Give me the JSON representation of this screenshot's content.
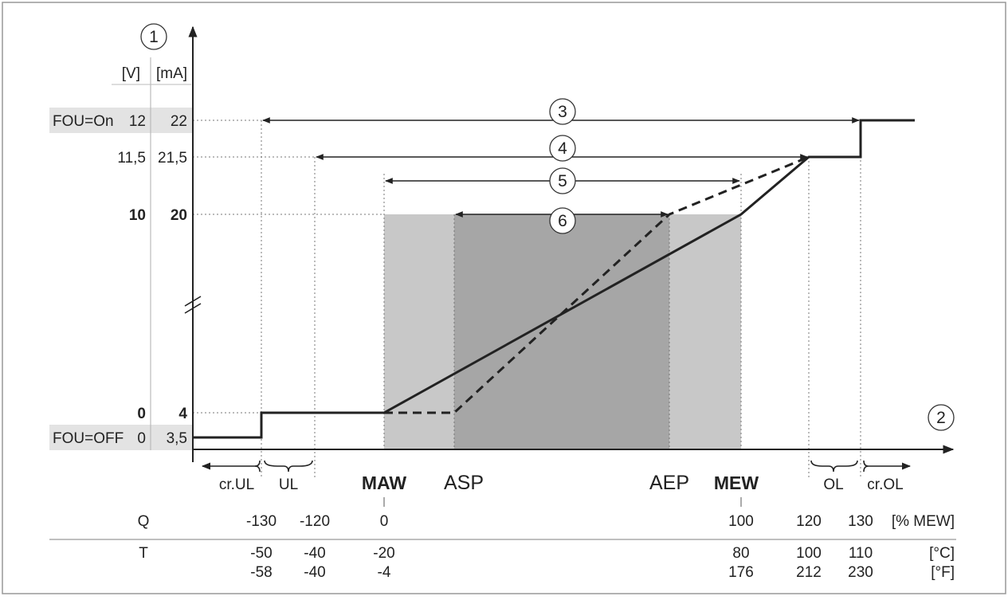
{
  "y_axis": {
    "marker": "1",
    "unit_v": "[V]",
    "unit_ma": "[mA]",
    "levels": [
      {
        "name": "fou-on",
        "label": "FOU=On",
        "v": "12",
        "ma": "22",
        "bold": false
      },
      {
        "name": "max-limit",
        "label": "",
        "v": "11,5",
        "ma": "21,5",
        "bold": false
      },
      {
        "name": "range-max",
        "label": "",
        "v": "10",
        "ma": "20",
        "bold": true
      },
      {
        "name": "range-min",
        "label": "",
        "v": "0",
        "ma": "4",
        "bold": true
      },
      {
        "name": "fou-off",
        "label": "FOU=OFF",
        "v": "0",
        "ma": "3,5",
        "bold": false
      }
    ]
  },
  "x_axis": {
    "marker": "2"
  },
  "ranges": [
    "3",
    "4",
    "5",
    "6"
  ],
  "labels": {
    "maw": "MAW",
    "asp": "ASP",
    "aep": "AEP",
    "mew": "MEW",
    "cr_ul": "cr.UL",
    "ul": "UL",
    "ol": "OL",
    "cr_ol": "cr.OL"
  },
  "q_row": {
    "label": "Q",
    "values": [
      "-130",
      "-120",
      "0",
      "100",
      "120",
      "130"
    ],
    "unit": "[% MEW]"
  },
  "t_row": {
    "label": "T",
    "celsius": [
      "-50",
      "-40",
      "-20",
      "80",
      "100",
      "110"
    ],
    "fahrenheit": [
      "-58",
      "-40",
      "-4",
      "176",
      "212",
      "230"
    ],
    "unit_c": "[°C]",
    "unit_f": "[°F]"
  }
}
